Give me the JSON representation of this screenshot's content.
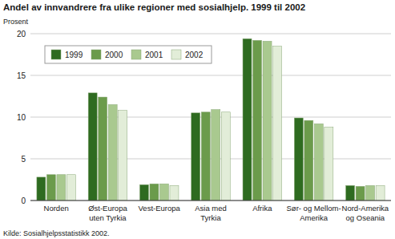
{
  "chart_data": {
    "type": "bar",
    "title": "Andel av innvandrere fra ulike regioner med sosialhjelp. 1999 til 2002",
    "y_label": "Prosent",
    "source": "Kilde: Sosialhjelpsstatistikk 2002.",
    "categories": [
      "Norden",
      "Øst-Europa\nuten Tyrkia",
      "Vest-Europa",
      "Asia med\nTyrkia",
      "Afrika",
      "Sør- og Mellom-\nAmerika",
      "Nord-Amerika\nog Oseania"
    ],
    "series": [
      {
        "name": "1999",
        "color": "#2e6b20",
        "values": [
          2.8,
          12.9,
          1.9,
          10.5,
          19.4,
          9.9,
          1.8
        ]
      },
      {
        "name": "2000",
        "color": "#6b9b4b",
        "values": [
          3.1,
          12.4,
          2.0,
          10.6,
          19.2,
          9.6,
          1.7
        ]
      },
      {
        "name": "2001",
        "color": "#a9c98f",
        "values": [
          3.1,
          11.5,
          2.0,
          10.9,
          19.1,
          9.2,
          1.8
        ]
      },
      {
        "name": "2002",
        "color": "#e2edd8",
        "values": [
          3.1,
          10.8,
          1.8,
          10.6,
          18.5,
          8.8,
          1.8
        ]
      }
    ],
    "ylim": [
      0,
      20
    ],
    "yticks": [
      0,
      5,
      10,
      15,
      20
    ],
    "grid": true,
    "legend": "upper left"
  }
}
